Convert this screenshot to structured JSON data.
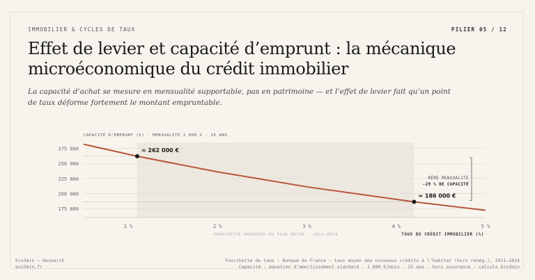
{
  "header": {
    "kicker": "IMMOBILIER & CYCLES DE TAUX",
    "pillar": "PILIER 05 / 12",
    "title": "Effet de levier et capacité d’emprunt : la mécanique microéconomique du crédit immobilier",
    "subtitle": "La capacité d’achat se mesure en mensualité supportable, pas en patrimoine — et l’effet de levier fait qu’un point de taux déforme fortement le montant empruntable."
  },
  "chart_data": {
    "type": "line",
    "title": "CAPACITÉ D’EMPRUNT (€) · MENSUALITÉ 1 000 € · 25 ANS",
    "xlabel": "TAUX DU CRÉDIT IMMOBILIER (%)",
    "ylabel": "",
    "xlim": [
      0.5,
      5.0
    ],
    "ylim": [
      160000,
      285000
    ],
    "x_ticks": [
      1,
      2,
      3,
      4,
      5
    ],
    "x_tick_labels": [
      "1 %",
      "2 %",
      "3 %",
      "4 %",
      "5 %"
    ],
    "y_ticks": [
      175000,
      200000,
      225000,
      250000,
      275000
    ],
    "y_tick_labels": [
      "175 000",
      "200 000",
      "225 000",
      "250 000",
      "275 000"
    ],
    "grid": true,
    "line_color": "#b9553a",
    "band_color": "#ece8e0",
    "series": [
      {
        "x": [
          0.5,
          1.1,
          2.0,
          3.0,
          4.2,
          5.0
        ],
        "y": [
          282000,
          262000,
          236000,
          211000,
          186000,
          172000
        ]
      }
    ],
    "shaded_range": {
      "x": [
        1.1,
        4.2
      ],
      "label": "FOURCHETTE OBSERVÉE DU TAUX MOYEN · 2021–2024"
    },
    "points": [
      {
        "x": 1.1,
        "y": 262000,
        "label": "≈ 262 000 €"
      },
      {
        "x": 4.2,
        "y": 186000,
        "label": "≈ 186 000 €"
      }
    ],
    "bracket_annotation": {
      "line1": "MÊME MENSUALITÉ",
      "line2": "−29 % DE CAPACITÉ"
    }
  },
  "footer": {
    "left_line1": "Eco3min — Research",
    "left_line2": "eco3min.fr",
    "right_line1": "Fourchette de taux : Banque de France — taux moyen des nouveaux crédits à l’habitat (hors renég.), 2021–2024",
    "right_line2": "Capacité : équation d’amortissement standard · 1 000 €/mois · 25 ans · hors assurance · calculs Eco3min"
  }
}
